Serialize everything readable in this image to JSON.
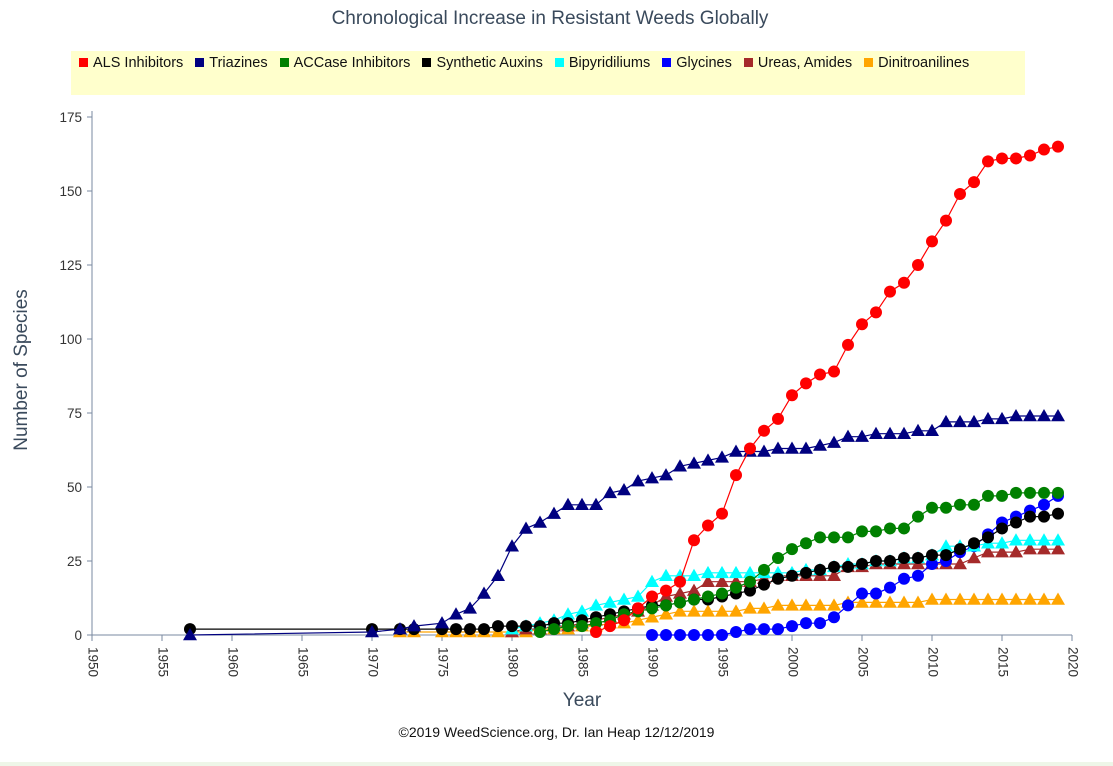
{
  "colors": {
    "axis": "#7a8aa0",
    "plot_bg": "#ffffff",
    "legend_bg": "#ffffcc"
  },
  "chart_data": {
    "type": "scatter",
    "title": "Chronological Increase in Resistant Weeds Globally",
    "xlabel": "Year",
    "ylabel": "Number of Species",
    "credit": "©2019 WeedScience.org, Dr. Ian Heap 12/12/2019",
    "xlim": [
      1950,
      2020
    ],
    "ylim": [
      0,
      175
    ],
    "x_ticks": [
      1950,
      1955,
      1960,
      1965,
      1970,
      1975,
      1980,
      1985,
      1990,
      1995,
      2000,
      2005,
      2010,
      2015,
      2020
    ],
    "y_ticks": [
      0,
      25,
      50,
      75,
      100,
      125,
      150,
      175
    ],
    "grid": false,
    "legend_position": "top",
    "series": [
      {
        "name": "ALS Inhibitors",
        "color": "#ff0000",
        "marker": "circle",
        "x": [
          1986,
          1987,
          1988,
          1989,
          1990,
          1991,
          1992,
          1993,
          1994,
          1995,
          1996,
          1997,
          1998,
          1999,
          2000,
          2001,
          2002,
          2003,
          2004,
          2005,
          2006,
          2007,
          2008,
          2009,
          2010,
          2011,
          2012,
          2013,
          2014,
          2015,
          2016,
          2017,
          2018,
          2019
        ],
        "y": [
          1,
          3,
          5,
          9,
          13,
          15,
          18,
          32,
          37,
          41,
          54,
          63,
          69,
          73,
          81,
          85,
          88,
          89,
          98,
          105,
          109,
          116,
          119,
          125,
          133,
          140,
          149,
          153,
          160,
          161,
          161,
          162,
          164,
          165
        ]
      },
      {
        "name": "Triazines",
        "color": "#000080",
        "marker": "triangle",
        "x": [
          1957,
          1970,
          1972,
          1973,
          1975,
          1976,
          1977,
          1978,
          1979,
          1980,
          1981,
          1982,
          1983,
          1984,
          1985,
          1986,
          1987,
          1988,
          1989,
          1990,
          1991,
          1992,
          1993,
          1994,
          1995,
          1996,
          1997,
          1998,
          1999,
          2000,
          2001,
          2002,
          2003,
          2004,
          2005,
          2006,
          2007,
          2008,
          2009,
          2010,
          2011,
          2012,
          2013,
          2014,
          2015,
          2016,
          2017,
          2018,
          2019
        ],
        "y": [
          0,
          1,
          2,
          3,
          4,
          7,
          9,
          14,
          20,
          30,
          36,
          38,
          41,
          44,
          44,
          44,
          48,
          49,
          52,
          53,
          54,
          57,
          58,
          59,
          60,
          62,
          62,
          62,
          63,
          63,
          63,
          64,
          65,
          67,
          67,
          68,
          68,
          68,
          69,
          69,
          72,
          72,
          72,
          73,
          73,
          74,
          74,
          74,
          74
        ]
      },
      {
        "name": "ACCase Inhibitors",
        "color": "#008000",
        "marker": "circle",
        "x": [
          1982,
          1983,
          1984,
          1985,
          1986,
          1987,
          1988,
          1989,
          1990,
          1991,
          1992,
          1993,
          1994,
          1995,
          1996,
          1997,
          1998,
          1999,
          2000,
          2001,
          2002,
          2003,
          2004,
          2005,
          2006,
          2007,
          2008,
          2009,
          2010,
          2011,
          2012,
          2013,
          2014,
          2015,
          2016,
          2017,
          2018,
          2019
        ],
        "y": [
          1,
          2,
          3,
          3,
          4,
          5,
          7,
          8,
          9,
          10,
          11,
          12,
          13,
          14,
          16,
          18,
          22,
          26,
          29,
          31,
          33,
          33,
          33,
          35,
          35,
          36,
          36,
          40,
          43,
          43,
          44,
          44,
          47,
          47,
          48,
          48,
          48,
          48
        ]
      },
      {
        "name": "Synthetic Auxins",
        "color": "#000000",
        "marker": "circle",
        "x": [
          1957,
          1970,
          1972,
          1973,
          1975,
          1976,
          1977,
          1978,
          1979,
          1980,
          1981,
          1982,
          1983,
          1984,
          1985,
          1986,
          1987,
          1988,
          1989,
          1990,
          1991,
          1992,
          1993,
          1994,
          1995,
          1996,
          1997,
          1998,
          1999,
          2000,
          2001,
          2002,
          2003,
          2004,
          2005,
          2006,
          2007,
          2008,
          2009,
          2010,
          2011,
          2012,
          2013,
          2014,
          2015,
          2016,
          2017,
          2018,
          2019
        ],
        "y": [
          2,
          2,
          2,
          2,
          2,
          2,
          2,
          2,
          3,
          3,
          3,
          3,
          4,
          4,
          5,
          6,
          7,
          8,
          9,
          10,
          10,
          11,
          12,
          12,
          13,
          14,
          15,
          17,
          19,
          20,
          21,
          22,
          23,
          23,
          24,
          25,
          25,
          26,
          26,
          27,
          27,
          29,
          31,
          33,
          36,
          38,
          40,
          40,
          41
        ]
      },
      {
        "name": "Bipyridiliums",
        "color": "#00ffff",
        "marker": "triangle",
        "x": [
          1980,
          1981,
          1982,
          1983,
          1984,
          1985,
          1986,
          1987,
          1988,
          1989,
          1990,
          1991,
          1992,
          1993,
          1994,
          1995,
          1996,
          1997,
          1998,
          1999,
          2000,
          2001,
          2002,
          2003,
          2004,
          2005,
          2006,
          2007,
          2008,
          2009,
          2010,
          2011,
          2012,
          2013,
          2014,
          2015,
          2016,
          2017,
          2018,
          2019
        ],
        "y": [
          2,
          3,
          4,
          5,
          7,
          8,
          10,
          11,
          12,
          13,
          18,
          20,
          20,
          20,
          21,
          21,
          21,
          21,
          21,
          21,
          21,
          22,
          22,
          23,
          24,
          24,
          25,
          25,
          26,
          26,
          27,
          30,
          30,
          30,
          31,
          31,
          32,
          32,
          32,
          32
        ]
      },
      {
        "name": "Glycines",
        "color": "#0000ff",
        "marker": "circle",
        "x": [
          1990,
          1991,
          1992,
          1993,
          1994,
          1995,
          1996,
          1997,
          1998,
          1999,
          2000,
          2001,
          2002,
          2003,
          2004,
          2005,
          2006,
          2007,
          2008,
          2009,
          2010,
          2011,
          2012,
          2013,
          2014,
          2015,
          2016,
          2017,
          2018,
          2019
        ],
        "y": [
          0,
          0,
          0,
          0,
          0,
          0,
          1,
          2,
          2,
          2,
          3,
          4,
          4,
          6,
          10,
          14,
          14,
          16,
          19,
          20,
          24,
          25,
          28,
          30,
          34,
          38,
          40,
          42,
          44,
          47
        ]
      },
      {
        "name": "Ureas, Amides",
        "color": "#a52a2a",
        "marker": "triangle",
        "x": [
          1980,
          1981,
          1982,
          1983,
          1984,
          1985,
          1986,
          1987,
          1988,
          1989,
          1990,
          1991,
          1992,
          1993,
          1994,
          1995,
          1996,
          1997,
          1998,
          1999,
          2000,
          2001,
          2002,
          2003,
          2004,
          2005,
          2006,
          2007,
          2008,
          2009,
          2010,
          2011,
          2012,
          2013,
          2014,
          2015,
          2016,
          2017,
          2018,
          2019
        ],
        "y": [
          1,
          2,
          2,
          3,
          3,
          4,
          5,
          6,
          7,
          8,
          10,
          13,
          14,
          15,
          18,
          18,
          18,
          18,
          19,
          20,
          20,
          20,
          20,
          20,
          23,
          23,
          24,
          24,
          24,
          24,
          24,
          24,
          24,
          26,
          28,
          28,
          28,
          29,
          29,
          29
        ]
      },
      {
        "name": "Dinitroanilines",
        "color": "#ffa500",
        "marker": "triangle",
        "x": [
          1972,
          1973,
          1975,
          1976,
          1977,
          1978,
          1979,
          1980,
          1981,
          1982,
          1983,
          1984,
          1985,
          1986,
          1987,
          1988,
          1989,
          1990,
          1991,
          1992,
          1993,
          1994,
          1995,
          1996,
          1997,
          1998,
          1999,
          2000,
          2001,
          2002,
          2003,
          2004,
          2005,
          2006,
          2007,
          2008,
          2009,
          2010,
          2011,
          2012,
          2013,
          2014,
          2015,
          2016,
          2017,
          2018,
          2019
        ],
        "y": [
          1,
          1,
          1,
          1,
          1,
          1,
          1,
          1,
          1,
          2,
          2,
          2,
          3,
          3,
          4,
          4,
          5,
          6,
          7,
          8,
          8,
          8,
          8,
          8,
          9,
          9,
          10,
          10,
          10,
          10,
          10,
          11,
          11,
          11,
          11,
          11,
          11,
          12,
          12,
          12,
          12,
          12,
          12,
          12,
          12,
          12,
          12
        ]
      }
    ]
  }
}
